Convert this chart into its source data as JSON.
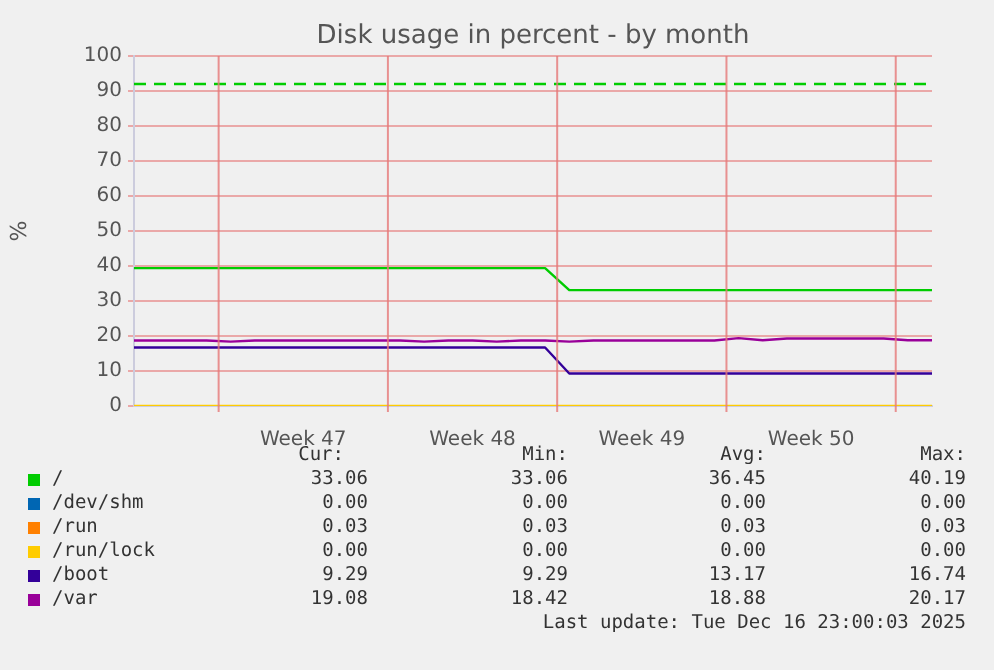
{
  "chart_data": {
    "type": "line",
    "title": "Disk usage in percent - by month",
    "ylabel": "%",
    "categories": [
      null,
      null,
      null,
      null,
      null,
      null,
      null,
      "Week 47",
      null,
      null,
      null,
      null,
      null,
      null,
      "Week 48",
      null,
      null,
      null,
      null,
      null,
      null,
      "Week 49",
      null,
      null,
      null,
      null,
      null,
      null,
      "Week 50",
      null,
      null,
      null,
      null,
      null
    ],
    "ylim": [
      0,
      100
    ],
    "yticks": [
      0,
      10,
      20,
      30,
      40,
      50,
      60,
      70,
      80,
      90,
      100
    ],
    "grid": true,
    "legend": "bottom",
    "marker": "none",
    "ref_lines": [
      {
        "axis": "y",
        "value": 92,
        "color": "#00cc00",
        "line_style": "dashed"
      }
    ],
    "series": [
      {
        "name": "/",
        "color": "#00cc00",
        "values": [
          39.4,
          39.4,
          39.4,
          39.4,
          39.4,
          39.4,
          39.4,
          39.4,
          39.4,
          39.4,
          39.4,
          39.4,
          39.4,
          39.4,
          39.4,
          39.4,
          39.4,
          39.4,
          33.1,
          33.1,
          33.1,
          33.1,
          33.1,
          33.1,
          33.1,
          33.1,
          33.1,
          33.1,
          33.1,
          33.1,
          33.1,
          33.1,
          33.1,
          33.1
        ]
      },
      {
        "name": "/dev/shm",
        "color": "#0066b3",
        "values": [
          null,
          null,
          null,
          null,
          null,
          null,
          null,
          null,
          null,
          null,
          null,
          null,
          null,
          null,
          null,
          null,
          null,
          null,
          null,
          null,
          null,
          null,
          null,
          null,
          null,
          null,
          null,
          null,
          null,
          null,
          null,
          null,
          null,
          null
        ]
      },
      {
        "name": "/run",
        "color": "#ff8000",
        "values": [
          null,
          null,
          null,
          null,
          null,
          null,
          null,
          null,
          null,
          null,
          null,
          null,
          null,
          null,
          null,
          null,
          null,
          null,
          null,
          null,
          null,
          null,
          null,
          null,
          null,
          null,
          null,
          null,
          null,
          null,
          null,
          null,
          null,
          null
        ]
      },
      {
        "name": "/run/lock",
        "color": "#ffcc00",
        "values": [
          0,
          0,
          0,
          0,
          0,
          0,
          0,
          0,
          0,
          0,
          0,
          0,
          0,
          0,
          0,
          0,
          0,
          0,
          0,
          0,
          0,
          0,
          0,
          0,
          0,
          0,
          0,
          0,
          0,
          0,
          0,
          0,
          0,
          0
        ]
      },
      {
        "name": "/boot",
        "color": "#330099",
        "values": [
          16.7,
          16.7,
          16.7,
          16.7,
          16.7,
          16.7,
          16.7,
          16.7,
          16.7,
          16.7,
          16.7,
          16.7,
          16.7,
          16.7,
          16.7,
          16.7,
          16.7,
          16.7,
          9.3,
          9.3,
          9.3,
          9.3,
          9.3,
          9.3,
          9.3,
          9.3,
          9.3,
          9.3,
          9.3,
          9.3,
          9.3,
          9.3,
          9.3,
          9.3
        ]
      },
      {
        "name": "/var",
        "color": "#990099",
        "values": [
          18.7,
          18.7,
          18.7,
          18.7,
          18.4,
          18.7,
          18.7,
          18.7,
          18.7,
          18.7,
          18.7,
          18.7,
          18.4,
          18.7,
          18.7,
          18.4,
          18.7,
          18.7,
          18.4,
          18.7,
          18.7,
          18.7,
          18.7,
          18.7,
          18.7,
          19.4,
          18.8,
          19.3,
          19.3,
          19.3,
          19.3,
          19.3,
          18.8,
          18.8
        ]
      }
    ],
    "annotations": [
      "Cur:",
      "Min:",
      "Avg:",
      "Max:",
      "33.06",
      "33.06",
      "36.45",
      "40.19",
      "0.00",
      "0.00",
      "0.00",
      "0.00",
      "0.03",
      "0.03",
      "0.03",
      "0.03",
      "0.00",
      "0.00",
      "0.00",
      "0.00",
      "9.29",
      "9.29",
      "13.17",
      "16.74",
      "19.08",
      "18.42",
      "18.88",
      "20.17",
      "Last update: Tue Dec 16 23:00:03 2025"
    ]
  }
}
